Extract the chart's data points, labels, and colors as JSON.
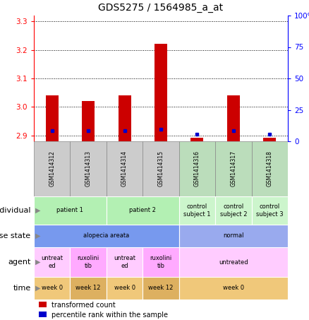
{
  "title": "GDS5275 / 1564985_a_at",
  "samples": [
    "GSM1414312",
    "GSM1414313",
    "GSM1414314",
    "GSM1414315",
    "GSM1414316",
    "GSM1414317",
    "GSM1414318"
  ],
  "red_values": [
    3.04,
    3.02,
    3.04,
    3.22,
    2.893,
    3.04,
    2.893
  ],
  "blue_values": [
    8.5,
    8.5,
    8.5,
    9.5,
    5.5,
    8.5,
    5.5
  ],
  "ylim_left": [
    2.88,
    3.32
  ],
  "ylim_right": [
    0,
    100
  ],
  "yticks_left": [
    2.9,
    3.0,
    3.1,
    3.2,
    3.3
  ],
  "yticks_right": [
    0,
    25,
    50,
    75,
    100
  ],
  "ytick_labels_right": [
    "0",
    "25",
    "50",
    "75",
    "100%"
  ],
  "bar_base": 2.88,
  "rows": {
    "individual": {
      "label": "individual",
      "groups": [
        {
          "text": "patient 1",
          "span": [
            0,
            2
          ],
          "color": "#b3f0b3"
        },
        {
          "text": "patient 2",
          "span": [
            2,
            4
          ],
          "color": "#b3f0b3"
        },
        {
          "text": "control\nsubject 1",
          "span": [
            4,
            5
          ],
          "color": "#ccf5cc"
        },
        {
          "text": "control\nsubject 2",
          "span": [
            5,
            6
          ],
          "color": "#ccf5cc"
        },
        {
          "text": "control\nsubject 3",
          "span": [
            6,
            7
          ],
          "color": "#ccf5cc"
        }
      ]
    },
    "disease_state": {
      "label": "disease state",
      "groups": [
        {
          "text": "alopecia areata",
          "span": [
            0,
            4
          ],
          "color": "#7799ee"
        },
        {
          "text": "normal",
          "span": [
            4,
            7
          ],
          "color": "#99aaee"
        }
      ]
    },
    "agent": {
      "label": "agent",
      "groups": [
        {
          "text": "untreat\ned",
          "span": [
            0,
            1
          ],
          "color": "#ffccff"
        },
        {
          "text": "ruxolini\ntib",
          "span": [
            1,
            2
          ],
          "color": "#ffaaff"
        },
        {
          "text": "untreat\ned",
          "span": [
            2,
            3
          ],
          "color": "#ffccff"
        },
        {
          "text": "ruxolini\ntib",
          "span": [
            3,
            4
          ],
          "color": "#ffaaff"
        },
        {
          "text": "untreated",
          "span": [
            4,
            7
          ],
          "color": "#ffccff"
        }
      ]
    },
    "time": {
      "label": "time",
      "groups": [
        {
          "text": "week 0",
          "span": [
            0,
            1
          ],
          "color": "#f0c87a"
        },
        {
          "text": "week 12",
          "span": [
            1,
            2
          ],
          "color": "#ddb060"
        },
        {
          "text": "week 0",
          "span": [
            2,
            3
          ],
          "color": "#f0c87a"
        },
        {
          "text": "week 12",
          "span": [
            3,
            4
          ],
          "color": "#ddb060"
        },
        {
          "text": "week 0",
          "span": [
            4,
            7
          ],
          "color": "#f0c87a"
        }
      ]
    }
  },
  "legend": [
    {
      "color": "#cc0000",
      "label": "transformed count"
    },
    {
      "color": "#0000cc",
      "label": "percentile rank within the sample"
    }
  ],
  "bar_color": "#cc0000",
  "dot_color": "#0000cc",
  "title_fontsize": 10,
  "tick_fontsize": 7.5,
  "label_fontsize": 8,
  "sample_bg_color": "#cccccc",
  "sample_bg_color_right": "#bbddbb"
}
